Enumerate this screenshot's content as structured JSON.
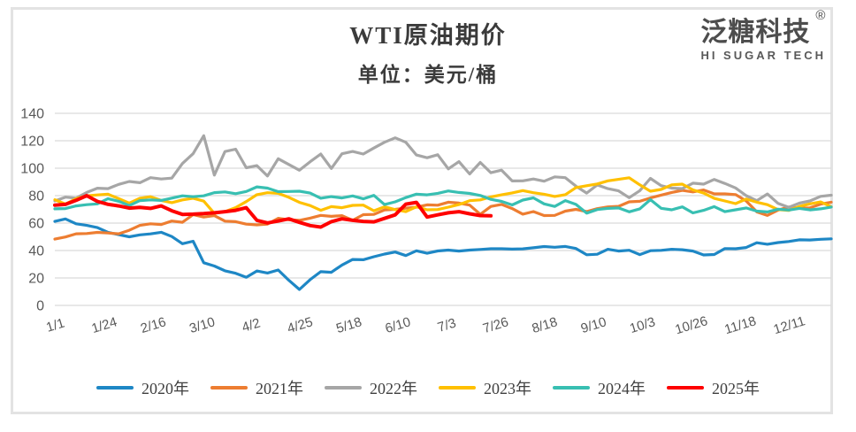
{
  "header": {
    "title": "WTI原油期价",
    "subtitle": "单位：美元/桶"
  },
  "logo": {
    "name": "泛糖科技",
    "registered": "®",
    "subtitle": "HI SUGAR TECH"
  },
  "chart_data": {
    "type": "line",
    "title": "WTI原油期价",
    "unit_label": "单位：美元/桶",
    "ylabel": "",
    "xlabel": "",
    "ylim": [
      0,
      140
    ],
    "y_ticks": [
      0,
      20,
      40,
      60,
      80,
      100,
      120,
      140
    ],
    "x_tick_labels": [
      "1/1",
      "1/24",
      "2/16",
      "3/10",
      "4/2",
      "4/25",
      "5/18",
      "6/10",
      "7/3",
      "7/26",
      "8/18",
      "9/10",
      "10/3",
      "10/26",
      "11/18",
      "12/11"
    ],
    "x_tick_days": [
      0,
      23,
      46,
      69,
      92,
      115,
      138,
      161,
      184,
      207,
      230,
      253,
      276,
      299,
      322,
      345
    ],
    "x_domain_days": [
      0,
      365
    ],
    "grid": true,
    "legend_position": "bottom",
    "axis_text_color": "#595959",
    "gridline_color": "#d9d9d9",
    "series": [
      {
        "name": "2020年",
        "color": "#1e87c5",
        "stroke_width": 3.2,
        "start_day": 0,
        "step": 5,
        "values": [
          61.2,
          63.0,
          59.5,
          58.3,
          56.7,
          53.2,
          51.6,
          50.0,
          51.4,
          52.1,
          53.3,
          50.2,
          45.0,
          46.8,
          31.1,
          28.7,
          25.2,
          23.4,
          20.5,
          25.1,
          23.6,
          25.8,
          18.3,
          11.6,
          18.8,
          24.6,
          24.1,
          29.4,
          33.5,
          33.3,
          35.5,
          37.4,
          38.9,
          36.3,
          39.8,
          38.0,
          39.7,
          40.3,
          39.6,
          40.3,
          40.8,
          41.3,
          41.3,
          41.0,
          41.2,
          42.0,
          42.9,
          42.4,
          43.0,
          41.5,
          36.9,
          37.3,
          40.9,
          39.6,
          40.2,
          37.0,
          39.9,
          40.1,
          40.9,
          40.6,
          39.6,
          36.8,
          37.1,
          41.4,
          41.3,
          42.2,
          45.7,
          44.6,
          45.8,
          46.6,
          47.8,
          47.7,
          48.2,
          48.5
        ]
      },
      {
        "name": "2021年",
        "color": "#ed7d31",
        "stroke_width": 3.2,
        "start_day": 0,
        "step": 5,
        "values": [
          48.3,
          49.9,
          52.2,
          52.4,
          53.2,
          52.8,
          52.2,
          54.8,
          58.3,
          59.5,
          59.0,
          61.5,
          60.6,
          66.1,
          64.4,
          65.4,
          61.4,
          61.0,
          59.2,
          58.7,
          59.3,
          63.5,
          62.4,
          62.0,
          63.6,
          65.6,
          64.9,
          65.4,
          62.0,
          66.1,
          66.3,
          69.6,
          70.0,
          70.9,
          71.6,
          73.3,
          73.0,
          75.2,
          74.6,
          73.1,
          66.4,
          72.1,
          73.6,
          70.6,
          66.5,
          68.4,
          65.5,
          65.6,
          68.7,
          70.0,
          68.4,
          70.5,
          71.8,
          72.2,
          75.5,
          75.9,
          78.3,
          80.4,
          82.3,
          83.8,
          82.7,
          84.1,
          81.3,
          81.3,
          80.8,
          76.1,
          68.2,
          65.6,
          69.5,
          71.7,
          70.9,
          71.1,
          73.8,
          75.2
        ]
      },
      {
        "name": "2022年",
        "color": "#a6a6a6",
        "stroke_width": 3.2,
        "start_day": 0,
        "step": 5,
        "values": [
          76.1,
          78.9,
          78.2,
          82.3,
          85.4,
          85.1,
          88.2,
          90.3,
          89.4,
          93.1,
          92.1,
          92.8,
          103.4,
          110.6,
          123.7,
          95.0,
          112.1,
          113.9,
          100.3,
          101.9,
          94.3,
          106.9,
          102.7,
          98.5,
          104.7,
          110.3,
          99.8,
          110.5,
          112.2,
          110.3,
          114.7,
          118.9,
          122.1,
          118.9,
          109.6,
          107.6,
          109.8,
          99.5,
          104.8,
          95.8,
          104.2,
          96.7,
          98.6,
          90.7,
          90.8,
          92.1,
          90.5,
          93.7,
          93.1,
          86.9,
          81.9,
          87.8,
          85.1,
          83.5,
          78.5,
          83.6,
          92.6,
          87.3,
          85.5,
          85.1,
          89.1,
          88.4,
          91.8,
          88.9,
          85.6,
          80.0,
          76.3,
          81.2,
          74.3,
          71.5,
          74.5,
          76.1,
          79.5,
          80.3
        ]
      },
      {
        "name": "2023年",
        "color": "#ffc000",
        "stroke_width": 3.2,
        "start_day": 0,
        "step": 5,
        "values": [
          77.0,
          73.9,
          77.8,
          79.9,
          80.5,
          81.0,
          77.9,
          74.5,
          78.1,
          79.2,
          76.5,
          74.9,
          76.9,
          78.1,
          76.0,
          67.0,
          68.4,
          71.3,
          75.7,
          80.7,
          82.1,
          81.7,
          78.8,
          75.1,
          72.8,
          69.3,
          72.0,
          71.2,
          72.9,
          73.1,
          69.0,
          71.9,
          69.8,
          68.3,
          71.9,
          69.7,
          69.9,
          71.6,
          73.5,
          76.3,
          76.9,
          79.1,
          80.6,
          82.0,
          83.7,
          82.1,
          81.0,
          79.4,
          80.7,
          85.9,
          87.2,
          88.5,
          90.8,
          91.9,
          93.0,
          87.9,
          83.2,
          84.5,
          87.9,
          88.4,
          84.2,
          81.9,
          78.0,
          76.1,
          74.2,
          77.5,
          75.2,
          73.4,
          69.8,
          69.2,
          72.1,
          74.0,
          75.4,
          71.9
        ]
      },
      {
        "name": "2024年",
        "color": "#38bfb2",
        "stroke_width": 3.2,
        "start_day": 0,
        "step": 5,
        "values": [
          70.4,
          70.6,
          72.5,
          73.4,
          74.0,
          77.8,
          75.9,
          72.8,
          76.4,
          76.9,
          76.5,
          78.2,
          79.9,
          79.2,
          79.9,
          82.2,
          82.7,
          81.4,
          83.0,
          86.4,
          85.5,
          82.9,
          83.0,
          83.2,
          81.9,
          78.1,
          79.3,
          78.3,
          79.8,
          77.7,
          80.2,
          73.5,
          75.5,
          78.6,
          81.1,
          80.6,
          81.7,
          83.4,
          82.3,
          81.6,
          80.1,
          77.3,
          75.8,
          73.2,
          76.8,
          78.4,
          74.0,
          72.1,
          76.4,
          73.6,
          67.2,
          69.9,
          70.7,
          71.0,
          68.2,
          70.4,
          77.1,
          70.8,
          69.7,
          71.8,
          67.4,
          69.3,
          72.0,
          68.3,
          69.7,
          71.0,
          68.7,
          68.1,
          70.1,
          69.5,
          70.7,
          69.6,
          70.4,
          71.7
        ]
      },
      {
        "name": "2025年",
        "color": "#fe0000",
        "stroke_width": 4,
        "start_day": 0,
        "step": 5,
        "values": [
          73.1,
          73.6,
          76.6,
          80.0,
          75.8,
          73.7,
          72.5,
          70.9,
          71.4,
          70.7,
          72.5,
          69.0,
          66.3,
          66.5,
          66.9,
          67.5,
          68.3,
          69.3,
          71.2,
          62.0,
          60.1,
          61.5,
          63.1,
          60.5,
          58.2,
          57.1,
          61.0,
          63.1,
          62.0,
          61.2,
          60.9,
          63.4,
          66.0,
          73.8,
          75.1,
          64.4,
          66.0,
          67.5,
          68.3,
          66.8,
          65.5,
          65.3
        ]
      }
    ]
  }
}
